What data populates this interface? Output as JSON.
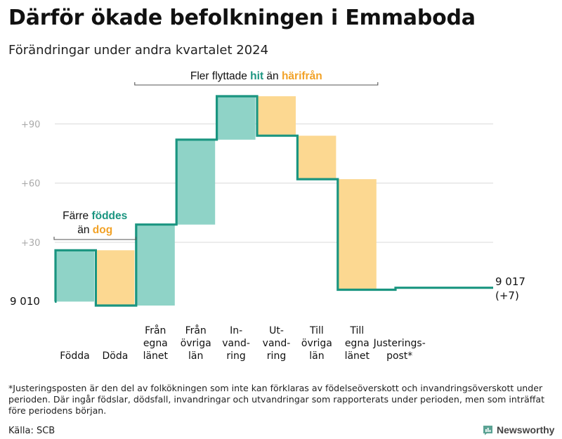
{
  "chart_data": {
    "type": "waterfall",
    "title": "Därför ökade befolkningen i Emmaboda",
    "subtitle": "Förändringar under andra kvartalet 2024",
    "start_value": 9010,
    "start_label": "9 010",
    "end_value": 9017,
    "end_label": "9 017",
    "end_change_label": "(+7)",
    "y_axis": {
      "min": -2,
      "max": 104,
      "ticks": [
        {
          "value": 30,
          "label": "+30"
        },
        {
          "value": 60,
          "label": "+60"
        },
        {
          "value": 90,
          "label": "+90"
        }
      ],
      "grid": true
    },
    "steps": [
      {
        "id": "fodda",
        "label": "Födda",
        "delta": 26,
        "kind": "in",
        "color": "#8fd3c7"
      },
      {
        "id": "doda",
        "label": "Döda",
        "delta": -28,
        "kind": "out",
        "color": "#fcd891"
      },
      {
        "id": "fran-egna-lanet",
        "label": "Från egna länet",
        "delta": 41,
        "kind": "in",
        "color": "#8fd3c7"
      },
      {
        "id": "fran-ovriga-lan",
        "label": "Från övriga län",
        "delta": 43,
        "kind": "in",
        "color": "#8fd3c7"
      },
      {
        "id": "invandring",
        "label": "In- vand- ring",
        "delta": 22,
        "kind": "in",
        "color": "#8fd3c7"
      },
      {
        "id": "utvandring",
        "label": "Ut- vand- ring",
        "delta": -20,
        "kind": "out",
        "color": "#fcd891"
      },
      {
        "id": "till-ovriga-lan",
        "label": "Till övriga län",
        "delta": -22,
        "kind": "out",
        "color": "#fcd891"
      },
      {
        "id": "till-egna-lanet",
        "label": "Till egna länet",
        "delta": -56,
        "kind": "out",
        "color": "#fcd891"
      },
      {
        "id": "justeringspost",
        "label": "Justerings- post*",
        "delta": 1,
        "kind": "adjust",
        "color": "#1a9580"
      }
    ],
    "group_annotations": [
      {
        "id": "births",
        "covers": [
          "fodda",
          "doda"
        ],
        "lines": [
          [
            {
              "text": "Färre ",
              "color": "#111111",
              "bold": false
            },
            {
              "text": "föddes",
              "color": "#1a9580",
              "bold": true
            }
          ],
          [
            {
              "text": "än ",
              "color": "#111111",
              "bold": false
            },
            {
              "text": "dog",
              "color": "#f2a227",
              "bold": true
            }
          ]
        ]
      },
      {
        "id": "migration",
        "covers": [
          "fran-egna-lanet",
          "till-egna-lanet"
        ],
        "lines": [
          [
            {
              "text": "Fler flyttade ",
              "color": "#111111",
              "bold": false
            },
            {
              "text": "hit",
              "color": "#1a9580",
              "bold": true
            },
            {
              "text": "  än ",
              "color": "#111111",
              "bold": false
            },
            {
              "text": "härifrån",
              "color": "#f2a227",
              "bold": true
            }
          ]
        ]
      }
    ],
    "colors": {
      "step_line": "#1a9580",
      "increase": "#8fd3c7",
      "decrease": "#fcd891",
      "grid": "#d9d9d9",
      "tick_text": "#aaaaaa"
    }
  },
  "footnote": "*Justeringsposten är den del av folkökningen som inte kan förklaras av födelseöverskott och invandringsöverskott under perioden. Där ingår födslar, dödsfall, invandringar och utvandringar som rapporterats under perioden, men som inträffat före periodens början.",
  "source": "Källa: SCB",
  "brand": {
    "name": "Newsworthy",
    "icon": "bar-chart-speech-icon",
    "color": "#5ba394"
  }
}
